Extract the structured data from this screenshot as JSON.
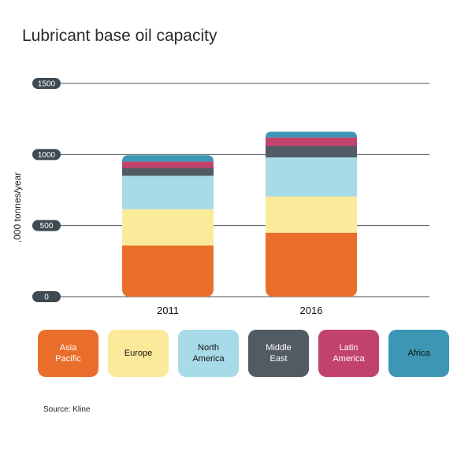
{
  "page": {
    "title": "Lubricant base oil capacity",
    "source": "Source: Kline"
  },
  "chart_data": {
    "type": "bar",
    "stacked": true,
    "title": "Lubricant base oil capacity",
    "xlabel": "",
    "ylabel": ",000 tonnes/year",
    "ylim": [
      0,
      1500
    ],
    "yticks": [
      "0",
      "500",
      "1000",
      "1500"
    ],
    "grid": true,
    "legend_position": "bottom",
    "categories": [
      "2011",
      "2016"
    ],
    "series": [
      {
        "name": "Asia Pacific",
        "legend_label": [
          "Asia",
          "Pacific"
        ],
        "color": "#ea6e2b",
        "label_color": "#ffffff",
        "values": [
          360,
          450
        ]
      },
      {
        "name": "Europe",
        "legend_label": [
          "Europe"
        ],
        "color": "#fcea9b",
        "label_color": "#111111",
        "values": [
          255,
          255
        ]
      },
      {
        "name": "North America",
        "legend_label": [
          "North",
          "America"
        ],
        "color": "#a6dbe7",
        "label_color": "#111111",
        "values": [
          235,
          275
        ]
      },
      {
        "name": "Middle East",
        "legend_label": [
          "Middle",
          "East"
        ],
        "color": "#525a63",
        "label_color": "#ffffff",
        "values": [
          55,
          80
        ]
      },
      {
        "name": "Latin America",
        "legend_label": [
          "Latin",
          "America"
        ],
        "color": "#c2426e",
        "label_color": "#ffffff",
        "values": [
          45,
          60
        ]
      },
      {
        "name": "Africa",
        "legend_label": [
          "Africa"
        ],
        "color": "#3c96b4",
        "label_color": "#111111",
        "values": [
          45,
          40
        ]
      }
    ]
  }
}
